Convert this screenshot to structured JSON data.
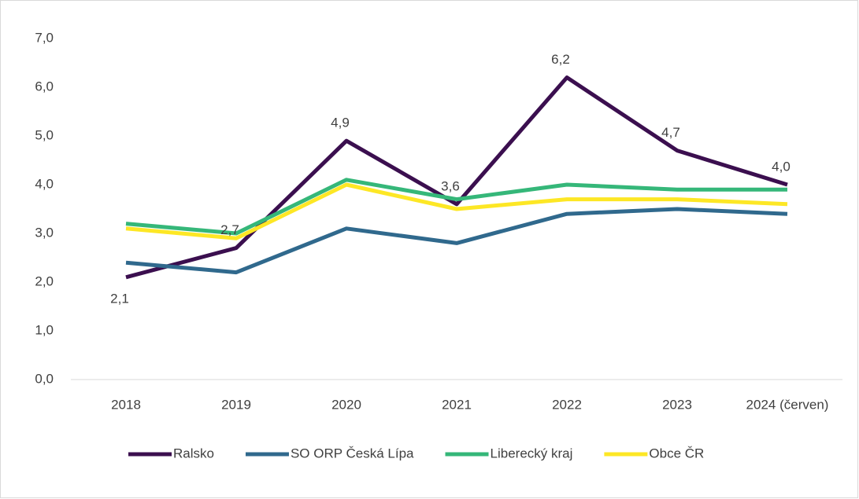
{
  "chart_data": {
    "type": "line",
    "categories": [
      "2018",
      "2019",
      "2020",
      "2021",
      "2022",
      "2023",
      "2024 (červen)"
    ],
    "series": [
      {
        "name": "Ralsko",
        "color": "#3b0f4f",
        "values": [
          2.1,
          2.7,
          4.9,
          3.6,
          6.2,
          4.7,
          4.0
        ],
        "value_labels": [
          "2,1",
          "2,7",
          "4,9",
          "3,6",
          "6,2",
          "4,7",
          "4,0"
        ]
      },
      {
        "name": "SO ORP Česká Lípa",
        "color": "#30698d",
        "values": [
          2.4,
          2.2,
          3.1,
          2.8,
          3.4,
          3.5,
          3.4
        ]
      },
      {
        "name": "Liberecký kraj",
        "color": "#35b779",
        "values": [
          3.2,
          3.0,
          4.1,
          3.7,
          4.0,
          3.9,
          3.9
        ]
      },
      {
        "name": "Obce ČR",
        "color": "#fde725",
        "values": [
          3.1,
          2.9,
          4.0,
          3.5,
          3.7,
          3.7,
          3.6
        ]
      }
    ],
    "ylim": [
      0,
      7
    ],
    "yticks": [
      {
        "value": 0,
        "label": "0,0"
      },
      {
        "value": 1,
        "label": "1,0"
      },
      {
        "value": 2,
        "label": "2,0"
      },
      {
        "value": 3,
        "label": "3,0"
      },
      {
        "value": 4,
        "label": "4,0"
      },
      {
        "value": 5,
        "label": "5,0"
      },
      {
        "value": 6,
        "label": "6,0"
      },
      {
        "value": 7,
        "label": "7,0"
      }
    ],
    "grid": false,
    "legend": "bottom"
  }
}
